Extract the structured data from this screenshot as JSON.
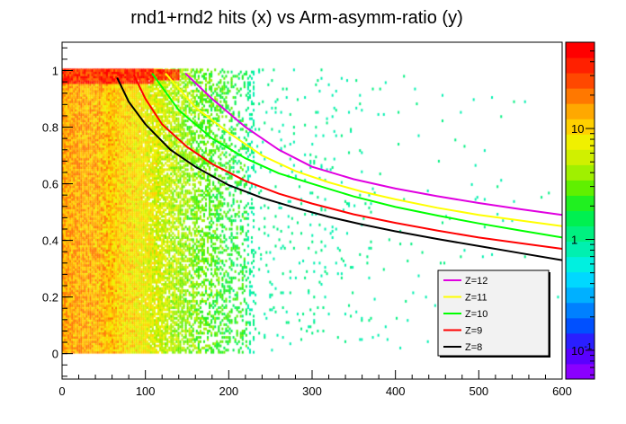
{
  "chart_data": {
    "type": "heatmap",
    "title": "rnd1+rnd2 hits (x) vs Arm-asymm-ratio (y)",
    "xlabel": "",
    "ylabel": "",
    "xlim": [
      0,
      600
    ],
    "ylim": [
      -0.09,
      1.1
    ],
    "x_ticks": [
      {
        "value": 0,
        "label": "0"
      },
      {
        "value": 100,
        "label": "100"
      },
      {
        "value": 200,
        "label": "200"
      },
      {
        "value": 300,
        "label": "300"
      },
      {
        "value": 400,
        "label": "400"
      },
      {
        "value": 500,
        "label": "500"
      },
      {
        "value": 600,
        "label": "600"
      }
    ],
    "y_ticks": [
      {
        "value": 0,
        "label": "0"
      },
      {
        "value": 0.2,
        "label": "0.2"
      },
      {
        "value": 0.4,
        "label": "0.4"
      },
      {
        "value": 0.6,
        "label": "0.6"
      },
      {
        "value": 0.8,
        "label": "0.8"
      },
      {
        "value": 1,
        "label": "1"
      }
    ],
    "colorbar": {
      "scale": "log",
      "range": [
        0.055,
        60
      ],
      "ticks": [
        {
          "value": 0.1,
          "label": "10",
          "exponent": "-1"
        },
        {
          "value": 1,
          "label": "1",
          "exponent": ""
        },
        {
          "value": 10,
          "label": "10",
          "exponent": ""
        }
      ],
      "colors": [
        "#8a00ff",
        "#5a00ff",
        "#2a1fff",
        "#0050ff",
        "#0080ff",
        "#00b0ff",
        "#00d8ff",
        "#00f0e0",
        "#00f0b0",
        "#00f080",
        "#00f050",
        "#20f020",
        "#60f000",
        "#a0f000",
        "#d0f000",
        "#f0f000",
        "#ffd000",
        "#ffa800",
        "#ff7800",
        "#ff4800",
        "#ff2000",
        "#ff0000"
      ]
    },
    "legend": {
      "placement": "bottom-right",
      "entries": [
        {
          "label": "Z=12",
          "color": "#e000e0"
        },
        {
          "label": "Z=11",
          "color": "#ffff00"
        },
        {
          "label": "Z=10",
          "color": "#00ff00"
        },
        {
          "label": "Z=9",
          "color": "#ff0000"
        },
        {
          "label": "Z=8",
          "color": "#000000"
        }
      ]
    },
    "series": [
      {
        "name": "Z=12",
        "color": "#e000e0",
        "x": [
          148,
          180,
          220,
          260,
          300,
          350,
          400,
          450,
          500,
          550,
          600
        ],
        "y": [
          0.99,
          0.9,
          0.8,
          0.72,
          0.66,
          0.616,
          0.583,
          0.556,
          0.532,
          0.51,
          0.49
        ]
      },
      {
        "name": "Z=11",
        "color": "#ffff00",
        "x": [
          124,
          160,
          200,
          240,
          280,
          320,
          360,
          400,
          450,
          500,
          550,
          600
        ],
        "y": [
          0.99,
          0.87,
          0.78,
          0.7,
          0.645,
          0.605,
          0.572,
          0.545,
          0.515,
          0.49,
          0.47,
          0.45
        ]
      },
      {
        "name": "Z=10",
        "color": "#00ff00",
        "x": [
          108,
          140,
          180,
          220,
          260,
          300,
          350,
          400,
          450,
          500,
          550,
          600
        ],
        "y": [
          0.99,
          0.86,
          0.76,
          0.69,
          0.637,
          0.6,
          0.555,
          0.518,
          0.488,
          0.46,
          0.435,
          0.41
        ]
      },
      {
        "name": "Z=9",
        "color": "#ff0000",
        "x": [
          86,
          100,
          120,
          150,
          180,
          220,
          260,
          300,
          350,
          400,
          450,
          500,
          550,
          600
        ],
        "y": [
          0.985,
          0.9,
          0.81,
          0.73,
          0.67,
          0.61,
          0.565,
          0.53,
          0.492,
          0.462,
          0.435,
          0.41,
          0.39,
          0.37
        ]
      },
      {
        "name": "Z=8",
        "color": "#000000",
        "x": [
          66,
          80,
          100,
          130,
          160,
          200,
          240,
          280,
          320,
          360,
          400,
          450,
          500,
          550,
          600
        ],
        "y": [
          0.975,
          0.89,
          0.81,
          0.72,
          0.66,
          0.595,
          0.55,
          0.515,
          0.483,
          0.456,
          0.432,
          0.405,
          0.38,
          0.355,
          0.33
        ]
      }
    ]
  }
}
